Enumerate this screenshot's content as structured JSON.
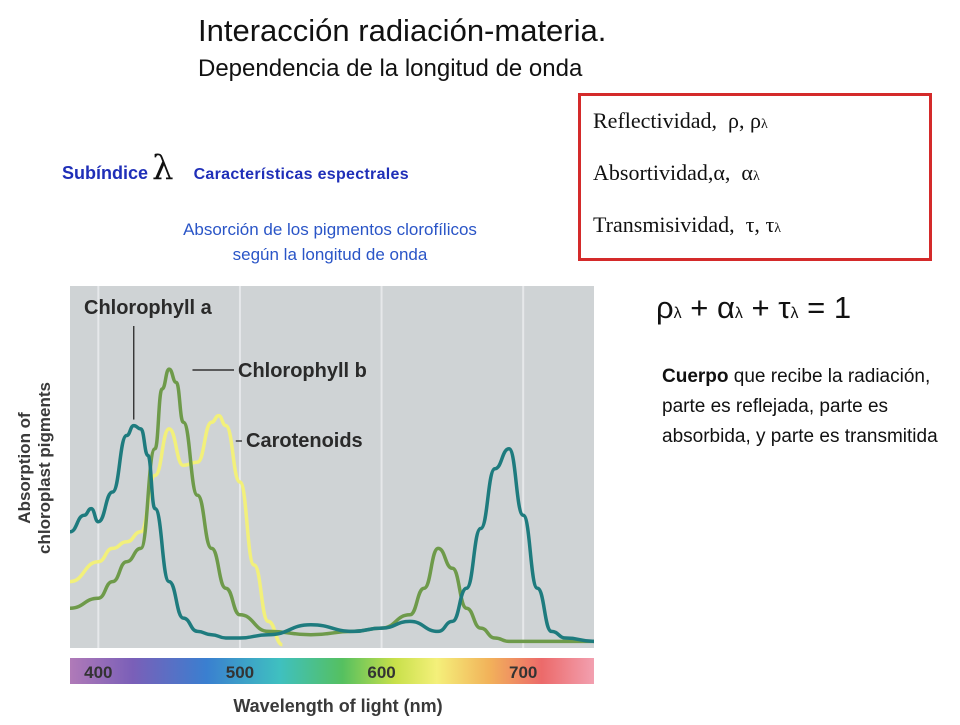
{
  "header": {
    "title": "Interacción radiación-materia.",
    "subtitle": "Dependencia de la longitud de onda"
  },
  "subindex": {
    "word": "Subíndice",
    "symbol": "λ",
    "label": "Características espectrales"
  },
  "caption": {
    "line1": "Absorción de los pigmentos clorofílicos",
    "line2": "según la longitud de onda"
  },
  "definitions": [
    {
      "name": "Reflectividad,",
      "symbol": "ρ,",
      "sym2": "ρ",
      "sub": "λ"
    },
    {
      "name": "Absortividad,",
      "symbol": "α,",
      "sym2": "α",
      "sub": "λ"
    },
    {
      "name": "Transmisividad,",
      "symbol": "τ,",
      "sym2": "τ",
      "sub": "λ"
    }
  ],
  "equation": {
    "rho": "ρ",
    "alpha": "α",
    "tau": "τ",
    "sub": "λ",
    "plus": "+",
    "equals": "= 1"
  },
  "description": {
    "bold": "Cuerpo",
    "rest": " que recibe la radiación, parte es reflejada, parte es absorbida, y parte es transmitida"
  },
  "colors": {
    "box_border": "#d42a2a",
    "blue_text": "#1f2fb8",
    "caption_text": "#2a55c7",
    "chlorophyll_a": "#1e7b7e",
    "chlorophyll_b": "#6e9a4a",
    "carotenoids": "#f2f07a",
    "plot_bg": "#cfd3d5"
  },
  "chart_data": {
    "type": "line",
    "xlabel": "Wavelength of light (nm)",
    "ylabel_line1": "Absorption of",
    "ylabel_line2": "chloroplast pigments",
    "xlim": [
      380,
      750
    ],
    "ylim": [
      0,
      1
    ],
    "ticks": [
      400,
      500,
      600,
      700
    ],
    "series": [
      {
        "name": "Chlorophyll a",
        "color": "#1e7b7e",
        "x": [
          380,
          390,
          395,
          400,
          410,
          420,
          425,
          430,
          435,
          440,
          450,
          460,
          470,
          480,
          490,
          500,
          520,
          550,
          580,
          600,
          620,
          640,
          650,
          660,
          670,
          680,
          690,
          700,
          710,
          720,
          730,
          750
        ],
        "y": [
          0.35,
          0.4,
          0.42,
          0.38,
          0.47,
          0.64,
          0.67,
          0.66,
          0.58,
          0.42,
          0.2,
          0.09,
          0.05,
          0.04,
          0.03,
          0.03,
          0.04,
          0.07,
          0.05,
          0.06,
          0.08,
          0.05,
          0.08,
          0.18,
          0.36,
          0.54,
          0.6,
          0.4,
          0.18,
          0.05,
          0.03,
          0.02
        ]
      },
      {
        "name": "Chlorophyll b",
        "color": "#6e9a4a",
        "x": [
          380,
          400,
          410,
          420,
          430,
          440,
          445,
          450,
          455,
          460,
          470,
          480,
          490,
          500,
          520,
          550,
          580,
          600,
          620,
          630,
          640,
          650,
          660,
          670,
          680,
          690,
          700,
          750
        ],
        "y": [
          0.12,
          0.15,
          0.2,
          0.26,
          0.3,
          0.6,
          0.78,
          0.84,
          0.8,
          0.68,
          0.46,
          0.3,
          0.18,
          0.1,
          0.05,
          0.04,
          0.05,
          0.06,
          0.1,
          0.18,
          0.3,
          0.24,
          0.12,
          0.06,
          0.03,
          0.02,
          0.02,
          0.02
        ]
      },
      {
        "name": "Carotenoids",
        "color": "#f2f07a",
        "x": [
          380,
          400,
          410,
          420,
          430,
          440,
          450,
          460,
          470,
          480,
          485,
          490,
          500,
          510,
          520,
          530
        ],
        "y": [
          0.2,
          0.26,
          0.3,
          0.32,
          0.35,
          0.52,
          0.66,
          0.55,
          0.56,
          0.68,
          0.7,
          0.67,
          0.5,
          0.25,
          0.08,
          0.01
        ]
      }
    ]
  }
}
